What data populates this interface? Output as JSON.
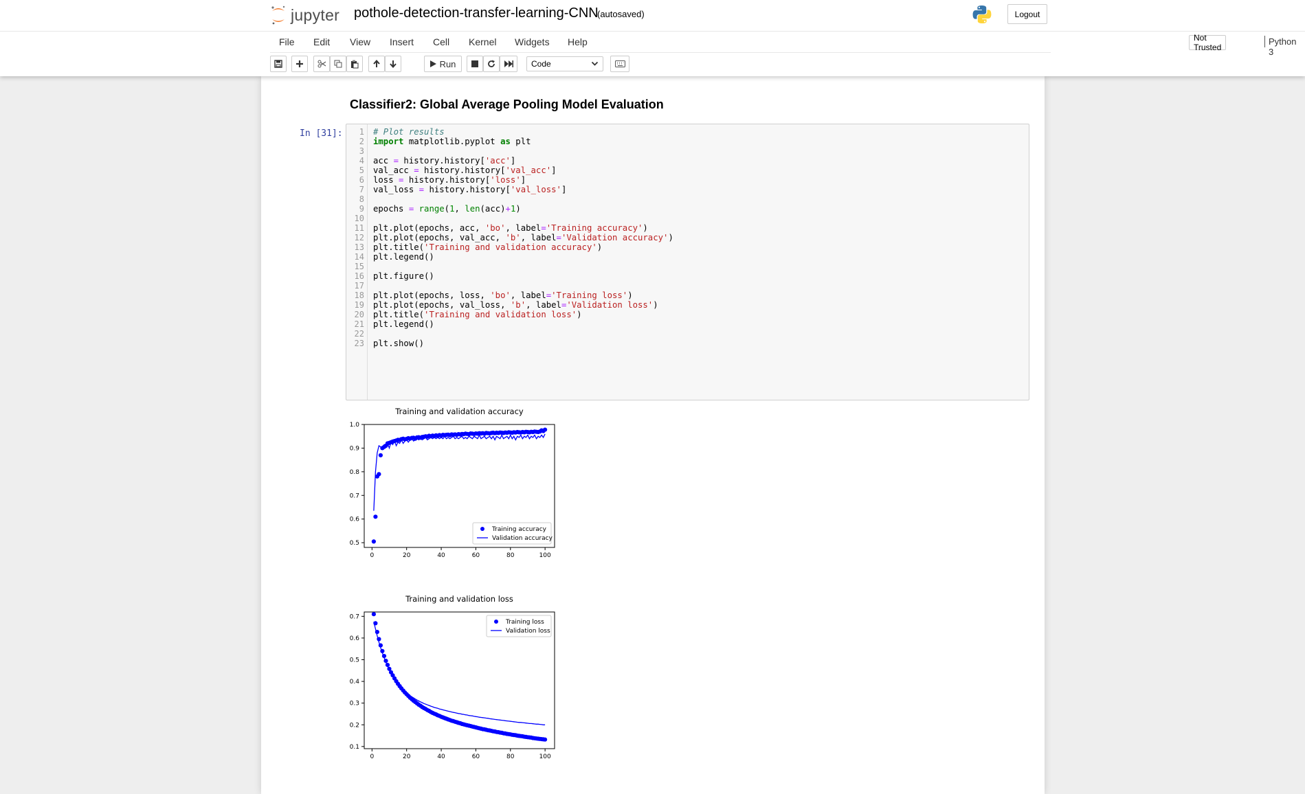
{
  "header": {
    "logo_text": "jupyter",
    "notebook_name": "pothole-detection-transfer-learning-CNN",
    "autosave_status": "(autosaved)",
    "logout_label": "Logout"
  },
  "menubar": {
    "items": [
      "File",
      "Edit",
      "View",
      "Insert",
      "Cell",
      "Kernel",
      "Widgets",
      "Help"
    ],
    "trust_label": "Not Trusted",
    "kernel_name": "Python 3"
  },
  "toolbar": {
    "run_label": "Run",
    "cell_type": "Code"
  },
  "notebook": {
    "heading": "Classifier2: Global Average Pooling Model Evaluation",
    "prompt": "In [31]:",
    "code_lines": [
      "# Plot results",
      "import matplotlib.pyplot as plt",
      "",
      "acc = history.history['acc']",
      "val_acc = history.history['val_acc']",
      "loss = history.history['loss']",
      "val_loss = history.history['val_loss']",
      "",
      "epochs = range(1, len(acc)+1)",
      "",
      "plt.plot(epochs, acc, 'bo', label='Training accuracy')",
      "plt.plot(epochs, val_acc, 'b', label='Validation accuracy')",
      "plt.title('Training and validation accuracy')",
      "plt.legend()",
      "",
      "plt.figure()",
      "",
      "plt.plot(epochs, loss, 'bo', label='Training loss')",
      "plt.plot(epochs, val_loss, 'b', label='Validation loss')",
      "plt.title('Training and validation loss')",
      "plt.legend()",
      "",
      "plt.show()"
    ]
  },
  "colors": {
    "series": "#0000ff",
    "prompt": "#303f9f",
    "logo_orange": "#f37726"
  },
  "chart_data": [
    {
      "type": "scatter",
      "title": "Training and validation accuracy",
      "xlim": [
        -4.5,
        105.5
      ],
      "ylim": [
        0.48,
        1.0
      ],
      "x_ticks": [
        0,
        20,
        40,
        60,
        80,
        100
      ],
      "y_ticks": [
        0.5,
        0.6,
        0.7,
        0.8,
        0.9,
        1.0
      ],
      "y_tick_labels": [
        "0.5",
        "0.6",
        "0.7",
        "0.8",
        "0.9",
        "1.0"
      ],
      "legend_position": "lower-right",
      "series": [
        {
          "name": "Training accuracy",
          "style": "points",
          "x": [
            1,
            2,
            3,
            4,
            5,
            6,
            7,
            8,
            9,
            10,
            11,
            12,
            13,
            14,
            15,
            16,
            17,
            18,
            19,
            20,
            21,
            22,
            23,
            24,
            25,
            26,
            27,
            28,
            29,
            30,
            31,
            32,
            33,
            34,
            35,
            36,
            37,
            38,
            39,
            40,
            41,
            42,
            43,
            44,
            45,
            46,
            47,
            48,
            49,
            50,
            51,
            52,
            53,
            54,
            55,
            56,
            57,
            58,
            59,
            60,
            61,
            62,
            63,
            64,
            65,
            66,
            67,
            68,
            69,
            70,
            71,
            72,
            73,
            74,
            75,
            76,
            77,
            78,
            79,
            80,
            81,
            82,
            83,
            84,
            85,
            86,
            87,
            88,
            89,
            90,
            91,
            92,
            93,
            94,
            95,
            96,
            97,
            98,
            99,
            100
          ],
          "y": [
            0.505,
            0.61,
            0.78,
            0.79,
            0.87,
            0.9,
            0.905,
            0.91,
            0.92,
            0.922,
            0.925,
            0.928,
            0.93,
            0.932,
            0.935,
            0.934,
            0.938,
            0.94,
            0.937,
            0.939,
            0.942,
            0.94,
            0.943,
            0.944,
            0.94,
            0.945,
            0.946,
            0.944,
            0.947,
            0.948,
            0.95,
            0.949,
            0.952,
            0.95,
            0.953,
            0.951,
            0.954,
            0.952,
            0.955,
            0.953,
            0.956,
            0.955,
            0.956,
            0.957,
            0.955,
            0.958,
            0.957,
            0.958,
            0.956,
            0.959,
            0.958,
            0.96,
            0.959,
            0.961,
            0.96,
            0.959,
            0.962,
            0.961,
            0.96,
            0.962,
            0.961,
            0.963,
            0.962,
            0.963,
            0.961,
            0.964,
            0.963,
            0.962,
            0.964,
            0.965,
            0.963,
            0.965,
            0.964,
            0.966,
            0.965,
            0.964,
            0.966,
            0.965,
            0.967,
            0.966,
            0.965,
            0.967,
            0.966,
            0.968,
            0.967,
            0.966,
            0.968,
            0.967,
            0.969,
            0.968,
            0.967,
            0.969,
            0.968,
            0.97,
            0.969,
            0.968,
            0.97,
            0.975,
            0.972,
            0.978
          ]
        },
        {
          "name": "Validation accuracy",
          "style": "line",
          "x": [
            1,
            2,
            3,
            4,
            5,
            6,
            7,
            8,
            9,
            10,
            11,
            12,
            13,
            14,
            15,
            16,
            17,
            18,
            19,
            20,
            21,
            22,
            23,
            24,
            25,
            26,
            27,
            28,
            29,
            30,
            31,
            32,
            33,
            34,
            35,
            36,
            37,
            38,
            39,
            40,
            41,
            42,
            43,
            44,
            45,
            46,
            47,
            48,
            49,
            50,
            51,
            52,
            53,
            54,
            55,
            56,
            57,
            58,
            59,
            60,
            61,
            62,
            63,
            64,
            65,
            66,
            67,
            68,
            69,
            70,
            71,
            72,
            73,
            74,
            75,
            76,
            77,
            78,
            79,
            80,
            81,
            82,
            83,
            84,
            85,
            86,
            87,
            88,
            89,
            90,
            91,
            92,
            93,
            94,
            95,
            96,
            97,
            98,
            99,
            100
          ],
          "y": [
            0.635,
            0.8,
            0.88,
            0.91,
            0.905,
            0.9,
            0.915,
            0.91,
            0.92,
            0.9,
            0.925,
            0.915,
            0.93,
            0.91,
            0.925,
            0.92,
            0.935,
            0.92,
            0.93,
            0.935,
            0.925,
            0.935,
            0.94,
            0.93,
            0.935,
            0.94,
            0.935,
            0.94,
            0.935,
            0.94,
            0.945,
            0.935,
            0.94,
            0.945,
            0.94,
            0.945,
            0.94,
            0.945,
            0.94,
            0.945,
            0.94,
            0.95,
            0.94,
            0.945,
            0.94,
            0.945,
            0.95,
            0.94,
            0.945,
            0.94,
            0.945,
            0.95,
            0.94,
            0.945,
            0.94,
            0.95,
            0.945,
            0.94,
            0.95,
            0.945,
            0.94,
            0.955,
            0.94,
            0.945,
            0.95,
            0.94,
            0.945,
            0.95,
            0.94,
            0.95,
            0.935,
            0.95,
            0.945,
            0.94,
            0.955,
            0.94,
            0.945,
            0.95,
            0.94,
            0.955,
            0.94,
            0.95,
            0.935,
            0.95,
            0.945,
            0.955,
            0.94,
            0.95,
            0.945,
            0.955,
            0.94,
            0.95,
            0.945,
            0.955,
            0.94,
            0.95,
            0.945,
            0.955,
            0.945,
            0.96
          ]
        }
      ]
    },
    {
      "type": "scatter",
      "title": "Training and validation loss",
      "xlim": [
        -4.5,
        105.5
      ],
      "ylim": [
        0.09,
        0.72
      ],
      "x_ticks": [
        0,
        20,
        40,
        60,
        80,
        100
      ],
      "y_ticks": [
        0.1,
        0.2,
        0.3,
        0.4,
        0.5,
        0.6,
        0.7
      ],
      "y_tick_labels": [
        "0.1",
        "0.2",
        "0.3",
        "0.4",
        "0.5",
        "0.6",
        "0.7"
      ],
      "legend_position": "upper-right",
      "series": [
        {
          "name": "Training loss",
          "style": "points",
          "x": [
            1,
            2,
            3,
            4,
            5,
            6,
            7,
            8,
            9,
            10,
            11,
            12,
            13,
            14,
            15,
            16,
            17,
            18,
            19,
            20,
            21,
            22,
            23,
            24,
            25,
            26,
            27,
            28,
            29,
            30,
            31,
            32,
            33,
            34,
            35,
            36,
            37,
            38,
            39,
            40,
            41,
            42,
            43,
            44,
            45,
            46,
            47,
            48,
            49,
            50,
            51,
            52,
            53,
            54,
            55,
            56,
            57,
            58,
            59,
            60,
            61,
            62,
            63,
            64,
            65,
            66,
            67,
            68,
            69,
            70,
            71,
            72,
            73,
            74,
            75,
            76,
            77,
            78,
            79,
            80,
            81,
            82,
            83,
            84,
            85,
            86,
            87,
            88,
            89,
            90,
            91,
            92,
            93,
            94,
            95,
            96,
            97,
            98,
            99,
            100
          ],
          "y": [
            0.71,
            0.668,
            0.628,
            0.595,
            0.566,
            0.54,
            0.517,
            0.495,
            0.476,
            0.458,
            0.442,
            0.428,
            0.414,
            0.401,
            0.389,
            0.378,
            0.368,
            0.358,
            0.349,
            0.341,
            0.333,
            0.325,
            0.318,
            0.311,
            0.305,
            0.299,
            0.293,
            0.288,
            0.282,
            0.277,
            0.273,
            0.268,
            0.264,
            0.259,
            0.255,
            0.251,
            0.248,
            0.244,
            0.241,
            0.237,
            0.234,
            0.231,
            0.228,
            0.225,
            0.222,
            0.219,
            0.217,
            0.214,
            0.212,
            0.209,
            0.207,
            0.204,
            0.202,
            0.2,
            0.198,
            0.196,
            0.194,
            0.192,
            0.19,
            0.188,
            0.186,
            0.184,
            0.182,
            0.18,
            0.179,
            0.177,
            0.175,
            0.174,
            0.172,
            0.17,
            0.169,
            0.167,
            0.166,
            0.164,
            0.163,
            0.161,
            0.16,
            0.158,
            0.157,
            0.156,
            0.154,
            0.153,
            0.152,
            0.15,
            0.149,
            0.148,
            0.147,
            0.145,
            0.144,
            0.143,
            0.142,
            0.141,
            0.139,
            0.138,
            0.137,
            0.136,
            0.135,
            0.134,
            0.133,
            0.132
          ]
        },
        {
          "name": "Validation loss",
          "style": "line",
          "x": [
            1,
            2,
            3,
            4,
            5,
            6,
            7,
            8,
            9,
            10,
            11,
            12,
            13,
            14,
            15,
            16,
            17,
            18,
            19,
            20,
            21,
            22,
            23,
            24,
            25,
            26,
            27,
            28,
            29,
            30,
            31,
            32,
            33,
            34,
            35,
            36,
            37,
            38,
            39,
            40,
            41,
            42,
            43,
            44,
            45,
            46,
            47,
            48,
            49,
            50,
            51,
            52,
            53,
            54,
            55,
            56,
            57,
            58,
            59,
            60,
            61,
            62,
            63,
            64,
            65,
            66,
            67,
            68,
            69,
            70,
            71,
            72,
            73,
            74,
            75,
            76,
            77,
            78,
            79,
            80,
            81,
            82,
            83,
            84,
            85,
            86,
            87,
            88,
            89,
            90,
            91,
            92,
            93,
            94,
            95,
            96,
            97,
            98,
            99,
            100
          ],
          "y": [
            0.675,
            0.642,
            0.61,
            0.581,
            0.555,
            0.531,
            0.509,
            0.489,
            0.47,
            0.454,
            0.439,
            0.425,
            0.412,
            0.4,
            0.39,
            0.38,
            0.371,
            0.363,
            0.355,
            0.348,
            0.341,
            0.335,
            0.329,
            0.324,
            0.319,
            0.314,
            0.31,
            0.306,
            0.302,
            0.298,
            0.295,
            0.292,
            0.289,
            0.286,
            0.283,
            0.28,
            0.278,
            0.276,
            0.273,
            0.271,
            0.269,
            0.267,
            0.265,
            0.263,
            0.261,
            0.259,
            0.257,
            0.256,
            0.254,
            0.252,
            0.251,
            0.249,
            0.248,
            0.246,
            0.245,
            0.243,
            0.242,
            0.241,
            0.239,
            0.238,
            0.237,
            0.235,
            0.234,
            0.233,
            0.232,
            0.231,
            0.23,
            0.228,
            0.227,
            0.226,
            0.225,
            0.224,
            0.223,
            0.222,
            0.221,
            0.22,
            0.219,
            0.218,
            0.217,
            0.216,
            0.215,
            0.214,
            0.213,
            0.212,
            0.211,
            0.211,
            0.21,
            0.209,
            0.208,
            0.207,
            0.206,
            0.206,
            0.205,
            0.204,
            0.203,
            0.203,
            0.202,
            0.201,
            0.2,
            0.2
          ]
        }
      ]
    }
  ]
}
